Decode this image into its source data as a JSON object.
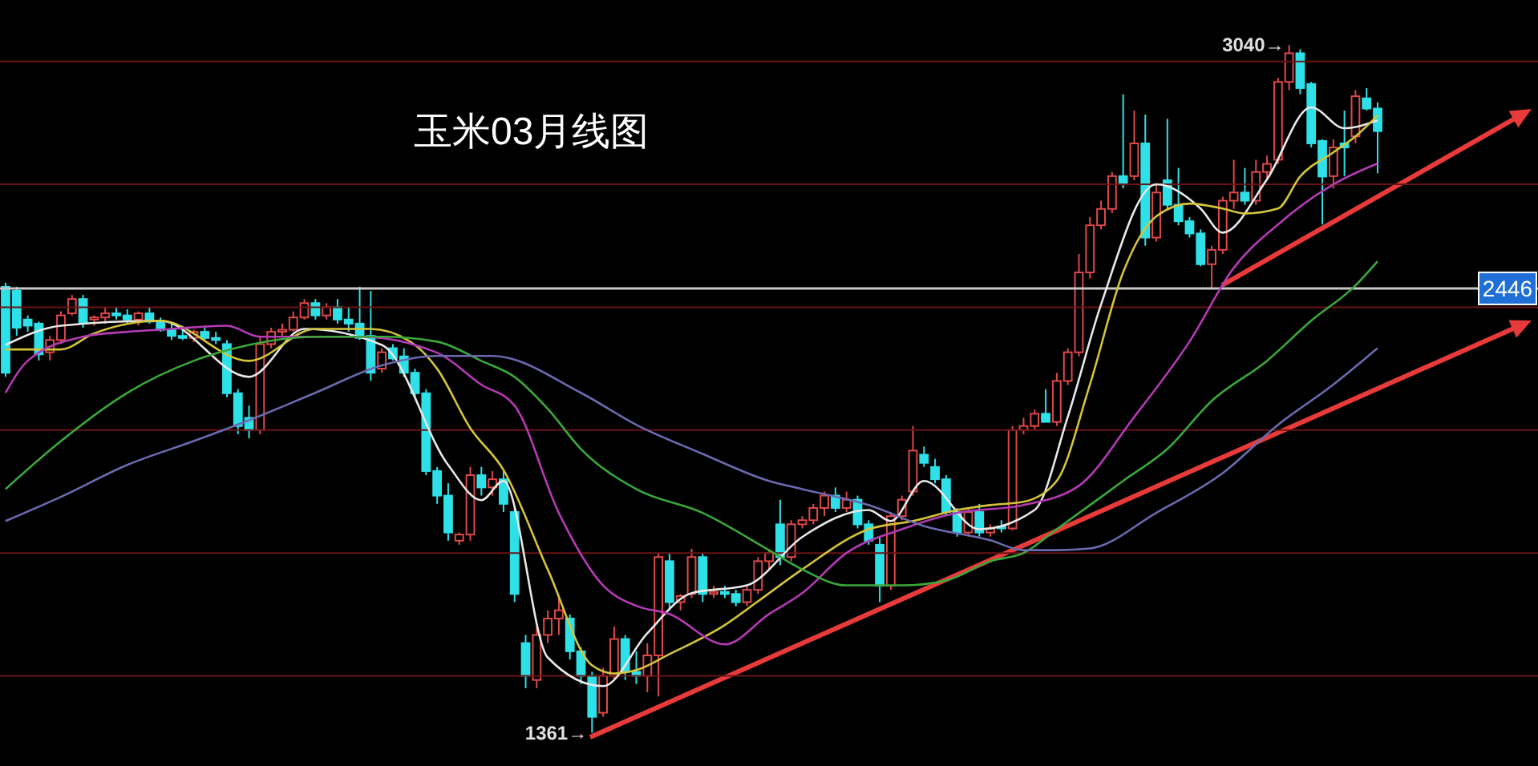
{
  "chart_data": {
    "type": "candlestick",
    "title": "玉米03月线图",
    "grid": "y",
    "ylim": [
      1280,
      3150
    ],
    "yticks": [
      {
        "value": 1500,
        "label": null
      },
      {
        "value": 1800,
        "label": null
      },
      {
        "value": 2100,
        "label": null
      },
      {
        "value": 2400,
        "label": null
      },
      {
        "value": 2700,
        "label": null
      },
      {
        "value": 3000,
        "label": null
      }
    ],
    "ref_lines": [
      {
        "axis": "y",
        "value": 2446,
        "label": "2446",
        "color": "#c8c8c8"
      }
    ],
    "annotations": [
      "3040→",
      "1361→"
    ],
    "categories": [
      null,
      null,
      null,
      null,
      null,
      null,
      null,
      null,
      null,
      null,
      null,
      null,
      null,
      null,
      null,
      null,
      null,
      null,
      null,
      null,
      null,
      null,
      null,
      null,
      null,
      null,
      null,
      null,
      null,
      null,
      null,
      null,
      null,
      null,
      null,
      null,
      null,
      null,
      null,
      null,
      null,
      null,
      null,
      null,
      null,
      null,
      null,
      null,
      null,
      null,
      null,
      null,
      null,
      null,
      null,
      null,
      null,
      null,
      null,
      null,
      null,
      null,
      null,
      null,
      null,
      null,
      null,
      null,
      null,
      null,
      null,
      null,
      null,
      null,
      null,
      null,
      null,
      null,
      null,
      null,
      null,
      null,
      null,
      null,
      null,
      null,
      null,
      null,
      null,
      null,
      null,
      null,
      null,
      null,
      null,
      null,
      null,
      null,
      null,
      null,
      null,
      null,
      null,
      null,
      null,
      null,
      null,
      null,
      null,
      null,
      null,
      null,
      null,
      null,
      null,
      null,
      null,
      null,
      null,
      null,
      null,
      null,
      null,
      null,
      null,
      null,
      null,
      null,
      null,
      null,
      null,
      null,
      null,
      null,
      null,
      null,
      null,
      null,
      null
    ],
    "ohlc": [
      [
        2450,
        2460,
        2230,
        2240
      ],
      [
        2440,
        2450,
        2330,
        2350
      ],
      [
        2370,
        2380,
        2340,
        2355
      ],
      [
        2360,
        2365,
        2270,
        2285
      ],
      [
        2290,
        2330,
        2270,
        2320
      ],
      [
        2320,
        2390,
        2310,
        2380
      ],
      [
        2385,
        2430,
        2380,
        2420
      ],
      [
        2420,
        2430,
        2350,
        2360
      ],
      [
        2370,
        2380,
        2355,
        2375
      ],
      [
        2375,
        2400,
        2360,
        2385
      ],
      [
        2385,
        2400,
        2370,
        2380
      ],
      [
        2380,
        2395,
        2360,
        2370
      ],
      [
        2370,
        2390,
        2355,
        2385
      ],
      [
        2385,
        2400,
        2360,
        2365
      ],
      [
        2365,
        2375,
        2340,
        2345
      ],
      [
        2345,
        2360,
        2320,
        2330
      ],
      [
        2330,
        2345,
        2320,
        2325
      ],
      [
        2325,
        2345,
        2315,
        2340
      ],
      [
        2340,
        2350,
        2320,
        2325
      ],
      [
        2325,
        2340,
        2310,
        2320
      ],
      [
        2310,
        2320,
        2180,
        2190
      ],
      [
        2190,
        2200,
        2090,
        2110
      ],
      [
        2130,
        2160,
        2080,
        2100
      ],
      [
        2100,
        2330,
        2090,
        2310
      ],
      [
        2310,
        2350,
        2300,
        2340
      ],
      [
        2340,
        2360,
        2330,
        2345
      ],
      [
        2345,
        2390,
        2340,
        2375
      ],
      [
        2375,
        2420,
        2370,
        2410
      ],
      [
        2410,
        2420,
        2370,
        2380
      ],
      [
        2380,
        2410,
        2370,
        2400
      ],
      [
        2400,
        2420,
        2360,
        2370
      ],
      [
        2370,
        2400,
        2340,
        2360
      ],
      [
        2360,
        2450,
        2320,
        2325
      ],
      [
        2330,
        2440,
        2220,
        2240
      ],
      [
        2250,
        2300,
        2240,
        2290
      ],
      [
        2300,
        2310,
        2270,
        2275
      ],
      [
        2280,
        2300,
        2230,
        2240
      ],
      [
        2240,
        2250,
        2180,
        2190
      ],
      [
        2190,
        2200,
        1990,
        2000
      ],
      [
        2000,
        2010,
        1920,
        1940
      ],
      [
        1940,
        1970,
        1830,
        1850
      ],
      [
        1830,
        1850,
        1820,
        1845
      ],
      [
        1845,
        2010,
        1830,
        1990
      ],
      [
        1990,
        2010,
        1940,
        1960
      ],
      [
        1960,
        2000,
        1940,
        1980
      ],
      [
        1980,
        2000,
        1900,
        1920
      ],
      [
        1900,
        1910,
        1680,
        1700
      ],
      [
        1580,
        1600,
        1470,
        1500
      ],
      [
        1490,
        1620,
        1470,
        1600
      ],
      [
        1600,
        1660,
        1580,
        1640
      ],
      [
        1640,
        1690,
        1600,
        1660
      ],
      [
        1640,
        1650,
        1540,
        1560
      ],
      [
        1560,
        1570,
        1480,
        1500
      ],
      [
        1500,
        1510,
        1361,
        1400
      ],
      [
        1410,
        1520,
        1400,
        1500
      ],
      [
        1500,
        1620,
        1490,
        1590
      ],
      [
        1590,
        1600,
        1490,
        1510
      ],
      [
        1510,
        1560,
        1480,
        1500
      ],
      [
        1500,
        1580,
        1460,
        1550
      ],
      [
        1550,
        1800,
        1450,
        1790
      ],
      [
        1780,
        1800,
        1660,
        1680
      ],
      [
        1680,
        1700,
        1660,
        1695
      ],
      [
        1700,
        1810,
        1690,
        1790
      ],
      [
        1790,
        1800,
        1680,
        1700
      ],
      [
        1700,
        1720,
        1690,
        1705
      ],
      [
        1705,
        1720,
        1690,
        1700
      ],
      [
        1700,
        1710,
        1670,
        1680
      ],
      [
        1680,
        1720,
        1670,
        1710
      ],
      [
        1710,
        1790,
        1700,
        1780
      ],
      [
        1780,
        1810,
        1760,
        1800
      ],
      [
        1870,
        1930,
        1770,
        1790
      ],
      [
        1790,
        1880,
        1780,
        1870
      ],
      [
        1870,
        1890,
        1860,
        1880
      ],
      [
        1880,
        1920,
        1870,
        1910
      ],
      [
        1910,
        1950,
        1890,
        1940
      ],
      [
        1940,
        1960,
        1900,
        1910
      ],
      [
        1910,
        1950,
        1900,
        1930
      ],
      [
        1930,
        1940,
        1860,
        1870
      ],
      [
        1870,
        1880,
        1820,
        1830
      ],
      [
        1820,
        1840,
        1680,
        1720
      ],
      [
        1720,
        1900,
        1710,
        1890
      ],
      [
        1890,
        1940,
        1880,
        1930
      ],
      [
        1950,
        2110,
        1940,
        2050
      ],
      [
        2040,
        2060,
        2010,
        2020
      ],
      [
        2010,
        2030,
        1970,
        1980
      ],
      [
        1980,
        1990,
        1890,
        1900
      ],
      [
        1900,
        1910,
        1840,
        1850
      ],
      [
        1850,
        1910,
        1840,
        1900
      ],
      [
        1900,
        1920,
        1840,
        1850
      ],
      [
        1850,
        1870,
        1840,
        1860
      ],
      [
        1865,
        1880,
        1850,
        1860
      ],
      [
        1860,
        2110,
        1855,
        2100
      ],
      [
        2100,
        2130,
        2090,
        2110
      ],
      [
        2110,
        2150,
        2100,
        2140
      ],
      [
        2140,
        2200,
        2120,
        2120
      ],
      [
        2120,
        2240,
        2110,
        2220
      ],
      [
        2220,
        2300,
        2210,
        2290
      ],
      [
        2290,
        2530,
        2280,
        2485
      ],
      [
        2485,
        2620,
        2470,
        2600
      ],
      [
        2600,
        2660,
        2590,
        2640
      ],
      [
        2640,
        2730,
        2630,
        2720
      ],
      [
        2720,
        2920,
        2690,
        2700
      ],
      [
        2720,
        2880,
        2710,
        2800
      ],
      [
        2800,
        2870,
        2550,
        2570
      ],
      [
        2570,
        2700,
        2560,
        2680
      ],
      [
        2710,
        2860,
        2640,
        2650
      ],
      [
        2650,
        2740,
        2600,
        2610
      ],
      [
        2610,
        2620,
        2570,
        2580
      ],
      [
        2580,
        2590,
        2500,
        2505
      ],
      [
        2505,
        2550,
        2445,
        2540
      ],
      [
        2540,
        2670,
        2530,
        2660
      ],
      [
        2660,
        2760,
        2640,
        2680
      ],
      [
        2680,
        2740,
        2650,
        2660
      ],
      [
        2660,
        2760,
        2650,
        2730
      ],
      [
        2730,
        2770,
        2710,
        2750
      ],
      [
        2760,
        2960,
        2750,
        2950
      ],
      [
        2950,
        3040,
        2930,
        3020
      ],
      [
        3020,
        3030,
        2920,
        2935
      ],
      [
        2945,
        2950,
        2790,
        2800
      ],
      [
        2806,
        2810,
        2602,
        2719
      ],
      [
        2720,
        2810,
        2690,
        2790
      ],
      [
        2800,
        2880,
        2720,
        2790
      ],
      [
        2817,
        2930,
        2800,
        2915
      ],
      [
        2910,
        2935,
        2880,
        2885
      ],
      [
        2885,
        2900,
        2727,
        2830
      ],
      null,
      null,
      null,
      null,
      null,
      null,
      null,
      null,
      null,
      null,
      null,
      null,
      null,
      null
    ],
    "series": [
      {
        "type": "line",
        "color": "#e8e8e8",
        "values": [
          2308,
          null,
          null,
          null,
          null,
          2355,
          null,
          null,
          null,
          null,
          null,
          null,
          null,
          null,
          2367,
          null,
          null,
          null,
          null,
          null,
          null,
          null,
          2230,
          null,
          null,
          null,
          null,
          2347,
          null,
          null,
          null,
          null,
          null,
          null,
          2308,
          null,
          null,
          null,
          null,
          null,
          2015,
          null,
          null,
          1929,
          null,
          1976,
          null,
          null,
          null,
          1545,
          null,
          null,
          null,
          null,
          1475,
          null,
          null,
          null,
          1604,
          null,
          null,
          null,
          1702,
          null,
          null,
          null,
          null,
          1721,
          null,
          null,
          null,
          null,
          1839,
          null,
          null,
          null,
          null,
          null,
          1905,
          null,
          1878,
          null,
          null,
          1976,
          null,
          null,
          null,
          null,
          1858,
          null,
          null,
          null,
          null,
          1905,
          null,
          null,
          2132,
          null,
          null,
          2406,
          null,
          null,
          null,
          null,
          2700,
          null,
          null,
          null,
          2641,
          null,
          2582,
          null,
          null,
          null,
          2712,
          null,
          null,
          null,
          2888,
          null,
          null,
          2837,
          null,
          null,
          2856,
          null,
          null,
          null,
          null,
          null,
          null,
          null,
          null,
          null,
          null,
          null,
          null,
          null,
          null
        ]
      },
      {
        "type": "line",
        "color": "#d4c43a",
        "values": [
          2297,
          null,
          null,
          null,
          null,
          2297,
          null,
          null,
          2336,
          null,
          null,
          null,
          null,
          null,
          2367,
          null,
          null,
          null,
          null,
          null,
          null,
          null,
          2269,
          null,
          null,
          null,
          null,
          null,
          2347,
          null,
          null,
          null,
          null,
          2347,
          null,
          null,
          null,
          2308,
          null,
          2250,
          null,
          null,
          2105,
          null,
          null,
          2003,
          null,
          null,
          null,
          1760,
          null,
          null,
          null,
          1526,
          null,
          1506,
          null,
          1514,
          null,
          null,
          1553,
          null,
          null,
          null,
          null,
          1624,
          null,
          null,
          1682,
          null,
          null,
          null,
          1760,
          null,
          null,
          null,
          null,
          null,
          1858,
          null,
          null,
          null,
          1878,
          null,
          null,
          null,
          1905,
          null,
          null,
          1917,
          null,
          null,
          1925,
          null,
          null,
          1976,
          null,
          null,
          2211,
          null,
          null,
          2485,
          null,
          null,
          2622,
          null,
          null,
          2653,
          null,
          null,
          2641,
          null,
          2629,
          null,
          null,
          2641,
          null,
          2719,
          null,
          null,
          2778,
          null,
          2817,
          null,
          2868,
          null,
          null,
          null,
          null,
          null,
          null,
          null,
          null,
          null,
          null,
          null,
          null,
          null,
          null
        ]
      },
      {
        "type": "line",
        "color": "#b53ab5",
        "values": [
          2191,
          null,
          2269,
          null,
          null,
          null,
          null,
          2328,
          null,
          null,
          null,
          2340,
          null,
          null,
          null,
          2347,
          null,
          null,
          null,
          null,
          2355,
          null,
          null,
          2328,
          null,
          null,
          null,
          null,
          null,
          null,
          null,
          null,
          2328,
          null,
          null,
          null,
          null,
          null,
          null,
          2289,
          null,
          null,
          null,
          2211,
          null,
          null,
          2160,
          null,
          null,
          null,
          1898,
          null,
          null,
          null,
          1721,
          null,
          null,
          1671,
          null,
          null,
          1651,
          null,
          null,
          null,
          null,
          1577,
          null,
          null,
          null,
          1651,
          null,
          null,
          1702,
          null,
          null,
          null,
          1800,
          null,
          null,
          null,
          null,
          1858,
          null,
          null,
          null,
          null,
          1898,
          null,
          null,
          null,
          null,
          null,
          1917,
          null,
          null,
          null,
          null,
          1964,
          null,
          null,
          null,
          null,
          2132,
          null,
          null,
          null,
          null,
          2316,
          null,
          null,
          null,
          2496,
          null,
          null,
          null,
          2602,
          null,
          null,
          null,
          null,
          2700,
          null,
          null,
          null,
          2751,
          null,
          null,
          null,
          null,
          null,
          null,
          null,
          null,
          null,
          null,
          null,
          null,
          null,
          null
        ]
      },
      {
        "type": "line",
        "color": "#3aa83a",
        "values": [
          1956,
          null,
          null,
          null,
          null,
          2073,
          null,
          null,
          null,
          null,
          null,
          2191,
          null,
          null,
          null,
          null,
          null,
          2269,
          null,
          null,
          null,
          null,
          2308,
          null,
          null,
          null,
          null,
          null,
          2328,
          null,
          null,
          null,
          null,
          null,
          2328,
          null,
          null,
          null,
          null,
          2316,
          null,
          null,
          null,
          2269,
          null,
          null,
          2230,
          null,
          null,
          2152,
          null,
          null,
          2054,
          null,
          null,
          null,
          null,
          1956,
          null,
          null,
          null,
          null,
          null,
          1898,
          null,
          null,
          null,
          null,
          null,
          1807,
          null,
          null,
          1760,
          null,
          null,
          null,
          1721,
          null,
          null,
          null,
          null,
          1721,
          null,
          null,
          null,
          1733,
          null,
          null,
          null,
          1780,
          null,
          null,
          1800,
          null,
          null,
          1858,
          null,
          null,
          null,
          null,
          null,
          1976,
          null,
          null,
          null,
          2054,
          null,
          null,
          null,
          2171,
          null,
          null,
          null,
          null,
          2269,
          null,
          null,
          null,
          2367,
          null,
          null,
          null,
          2453,
          null,
          2512,
          null,
          null,
          null,
          null,
          null,
          null,
          null,
          null,
          null,
          null,
          null,
          null,
          null,
          null
        ]
      },
      {
        "type": "line",
        "color": "#6a6ab0",
        "values": [
          1878,
          null,
          null,
          null,
          null,
          1937,
          null,
          null,
          null,
          null,
          null,
          2015,
          null,
          null,
          null,
          null,
          null,
          2073,
          null,
          null,
          null,
          null,
          2124,
          null,
          null,
          null,
          null,
          null,
          2191,
          null,
          null,
          null,
          null,
          null,
          2258,
          null,
          null,
          null,
          null,
          2281,
          null,
          null,
          null,
          null,
          2281,
          null,
          null,
          null,
          null,
          null,
          null,
          null,
          2191,
          null,
          null,
          null,
          null,
          2113,
          null,
          null,
          null,
          null,
          null,
          2042,
          null,
          null,
          null,
          null,
          null,
          1976,
          null,
          null,
          1956,
          null,
          null,
          null,
          null,
          null,
          1917,
          null,
          null,
          null,
          null,
          1866,
          null,
          null,
          null,
          null,
          null,
          1831,
          null,
          null,
          1807,
          null,
          null,
          1807,
          null,
          null,
          1811,
          null,
          null,
          null,
          null,
          null,
          1898,
          null,
          null,
          null,
          null,
          null,
          1995,
          null,
          null,
          null,
          null,
          2113,
          null,
          null,
          null,
          null,
          2211,
          null,
          null,
          null,
          2300,
          null,
          null,
          null,
          null,
          null,
          null,
          null,
          null,
          null,
          null,
          null,
          null,
          null,
          null
        ]
      }
    ]
  }
}
